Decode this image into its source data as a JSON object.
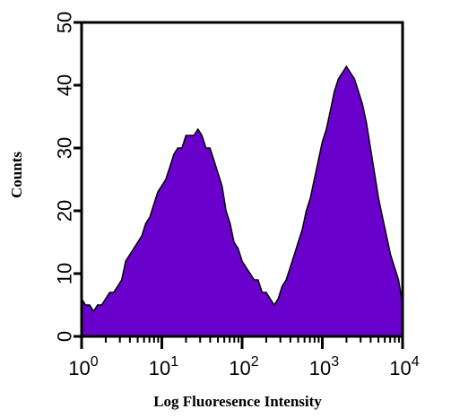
{
  "chart_data": {
    "type": "area",
    "xlabel": "Log Fluoresence Intensity",
    "ylabel": "Counts",
    "xscale": "log",
    "xlim": [
      1,
      10000
    ],
    "ylim": [
      0,
      50
    ],
    "yticks": [
      0,
      10,
      20,
      30,
      40,
      50
    ],
    "xticks": [
      {
        "base": "10",
        "exp": "0",
        "value": 1
      },
      {
        "base": "10",
        "exp": "1",
        "value": 10
      },
      {
        "base": "10",
        "exp": "2",
        "value": 100
      },
      {
        "base": "10",
        "exp": "3",
        "value": 1000
      },
      {
        "base": "10",
        "exp": "4",
        "value": 10000
      }
    ],
    "fill_color": "#6a00cc",
    "grid": false,
    "series": [
      {
        "x": [
          1.0,
          1.12,
          1.26,
          1.41,
          1.58,
          1.78,
          2.0,
          2.24,
          2.51,
          2.82,
          3.16,
          3.55,
          3.98,
          4.47,
          5.01,
          5.62,
          6.31,
          7.08,
          7.94,
          8.91,
          10.0,
          11.2,
          12.6,
          14.1,
          15.8,
          17.8,
          20.0,
          22.4,
          25.1,
          28.2,
          31.6,
          35.5,
          39.8,
          44.7,
          50.1,
          56.2,
          63.1,
          70.8,
          79.4,
          89.1,
          100,
          112,
          126,
          141,
          158,
          178,
          200,
          224,
          251,
          282,
          316,
          355,
          398,
          447,
          501,
          562,
          631,
          708,
          794,
          891,
          1000,
          1122,
          1259,
          1413,
          1585,
          1778,
          1995,
          2239,
          2512,
          2818,
          3162,
          3548,
          3981,
          4467,
          5012,
          5623,
          6310,
          7079,
          7943,
          8913,
          10000
        ],
        "y": [
          6,
          5,
          5,
          4,
          5,
          5,
          6,
          7,
          7,
          8,
          9,
          12,
          13,
          14,
          15,
          16,
          18,
          19,
          21,
          23,
          24,
          25,
          27,
          29,
          30,
          30,
          32,
          32,
          32,
          33,
          32,
          30,
          30,
          28,
          26,
          24,
          20,
          18,
          15,
          14,
          12,
          11,
          10,
          9,
          9,
          7,
          7,
          6,
          5,
          6,
          8,
          9,
          11,
          13,
          15,
          17,
          20,
          22,
          25,
          28,
          31,
          33,
          36,
          39,
          41,
          42,
          43,
          42,
          41,
          39,
          37,
          34,
          30,
          26,
          22,
          19,
          16,
          13,
          11,
          9,
          5
        ]
      }
    ]
  }
}
